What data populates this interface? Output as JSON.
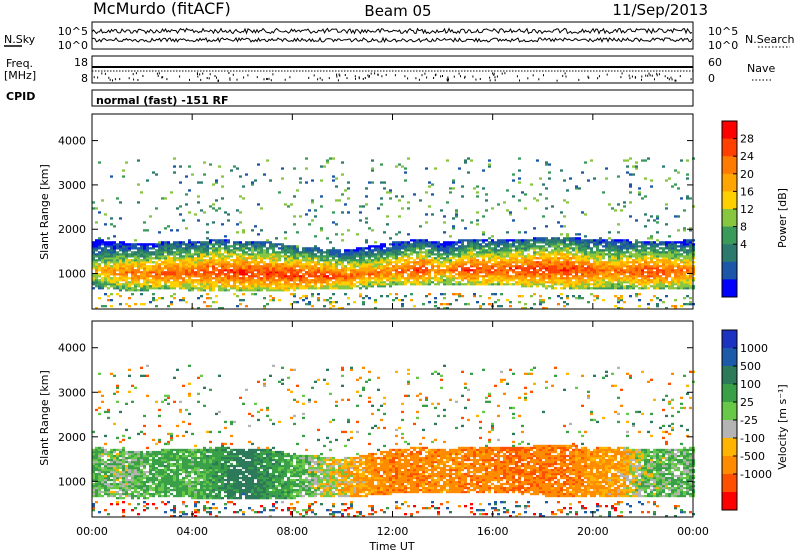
{
  "header": {
    "station": "McMurdo (fitACF)",
    "beam": "Beam 05",
    "date": "11/Sep/2013"
  },
  "noise_panel": {
    "left_label": "N.Sky",
    "right_label": "N.Search",
    "left_ticks": [
      "10^5",
      "10^0"
    ],
    "right_ticks": [
      "10^5",
      "10^0"
    ]
  },
  "freq_panel": {
    "left_label_line1": "Freq.",
    "left_label_line2": "[MHz]",
    "left_ticks": [
      "18",
      "8"
    ],
    "right_label": "Nave",
    "right_ticks": [
      "60",
      "0"
    ]
  },
  "cpid_panel": {
    "label": "CPID",
    "text": "normal (fast) -151 RF"
  },
  "power_colorbar": {
    "label": "Power [dB]",
    "ticks": [
      "28",
      "24",
      "20",
      "16",
      "12",
      "8",
      "4"
    ],
    "colors": [
      "#ff0000",
      "#ff4000",
      "#ff7a00",
      "#ffa500",
      "#ffd000",
      "#88c640",
      "#3a9a5a",
      "#2c7a6e",
      "#1c56a8",
      "#0000ff"
    ]
  },
  "velocity_colorbar": {
    "label": "Velocity [m s⁻¹]",
    "ticks": [
      "1000",
      "500",
      "100",
      "25",
      "-25",
      "-100",
      "-500",
      "-1000"
    ],
    "colors": [
      "#1c32c0",
      "#1c5aaa",
      "#2d7a5a",
      "#3aa048",
      "#68c848",
      "#b4b4b4",
      "#ffb400",
      "#ff8c00",
      "#ff5000",
      "#ff0000"
    ]
  },
  "time_axis": {
    "label": "Time UT",
    "ticks": [
      "00:00",
      "04:00",
      "08:00",
      "12:00",
      "16:00",
      "20:00",
      "00:00"
    ]
  },
  "chart_data": [
    {
      "type": "heatmap",
      "title": "",
      "xlabel": "",
      "ylabel": "Slant Range [km]",
      "xlim": [
        0,
        24
      ],
      "ylim": [
        200,
        4600
      ],
      "yticks": [
        "4000",
        "3000",
        "2000",
        "1000"
      ],
      "ytick_values": [
        4000,
        3000,
        2000,
        1000
      ],
      "colorbar_range": [
        0,
        32
      ],
      "echo_band_lower_km": [
        650,
        600,
        600,
        620,
        600,
        600,
        600,
        600,
        600,
        650,
        650,
        650,
        700,
        700,
        700,
        700,
        700,
        700,
        650,
        650,
        650,
        650,
        650,
        650,
        650
      ],
      "echo_band_upper_km": [
        1750,
        1700,
        1650,
        1700,
        1700,
        1750,
        1700,
        1700,
        1600,
        1550,
        1500,
        1600,
        1700,
        1750,
        1700,
        1750,
        1750,
        1750,
        1800,
        1800,
        1750,
        1750,
        1700,
        1700,
        1750
      ],
      "echo_core_power_db": [
        20,
        24,
        24,
        26,
        26,
        28,
        28,
        28,
        28,
        28,
        26,
        24,
        24,
        28,
        22,
        28,
        26,
        28,
        28,
        28,
        26,
        24,
        28,
        26,
        24
      ]
    },
    {
      "type": "heatmap",
      "title": "",
      "xlabel": "Time UT",
      "ylabel": "Slant Range [km]",
      "xlim": [
        0,
        24
      ],
      "ylim": [
        200,
        4600
      ],
      "yticks": [
        "4000",
        "3000",
        "2000",
        "1000"
      ],
      "ytick_values": [
        4000,
        3000,
        2000,
        1000
      ],
      "colorbar_range": [
        -1000,
        1000
      ],
      "echo_band_lower_km": [
        650,
        600,
        600,
        620,
        600,
        600,
        600,
        600,
        600,
        650,
        650,
        650,
        700,
        700,
        700,
        700,
        700,
        700,
        650,
        650,
        650,
        650,
        650,
        650,
        650
      ],
      "echo_band_upper_km": [
        1750,
        1700,
        1650,
        1700,
        1700,
        1750,
        1700,
        1700,
        1600,
        1550,
        1500,
        1600,
        1700,
        1750,
        1700,
        1750,
        1750,
        1750,
        1800,
        1800,
        1750,
        1750,
        1700,
        1700,
        1750
      ],
      "echo_core_velocity_ms": [
        100,
        50,
        100,
        150,
        100,
        200,
        400,
        200,
        150,
        0,
        -50,
        -150,
        -200,
        -200,
        -150,
        -200,
        -200,
        -250,
        -200,
        -200,
        -150,
        -100,
        50,
        80,
        100
      ]
    }
  ]
}
